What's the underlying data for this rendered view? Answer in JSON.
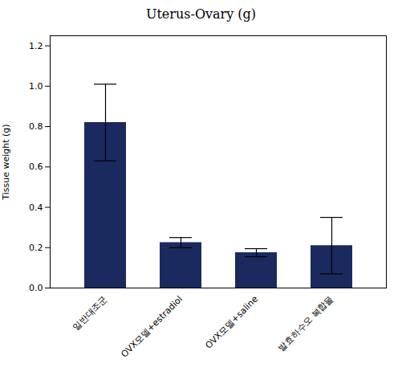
{
  "chart_data": {
    "type": "bar",
    "title": "Uterus-Ovary (g)",
    "ylabel": "Tissue weight (g)",
    "categories": [
      "일반대조군",
      "OVX모델+estradiol",
      "OVX모델+saline",
      "발효하수오 복합물"
    ],
    "values": [
      0.82,
      0.225,
      0.175,
      0.21
    ],
    "errors": [
      0.19,
      0.025,
      0.02,
      0.14
    ],
    "color": "#1a2a5e",
    "ylim": [
      0,
      1.25
    ],
    "yticks": [
      {
        "value": 0,
        "label": "0.0"
      },
      0.2,
      0.4,
      0.6,
      0.8,
      {
        "value": 1,
        "label": "1.0"
      },
      1.2
    ],
    "grid": false
  }
}
